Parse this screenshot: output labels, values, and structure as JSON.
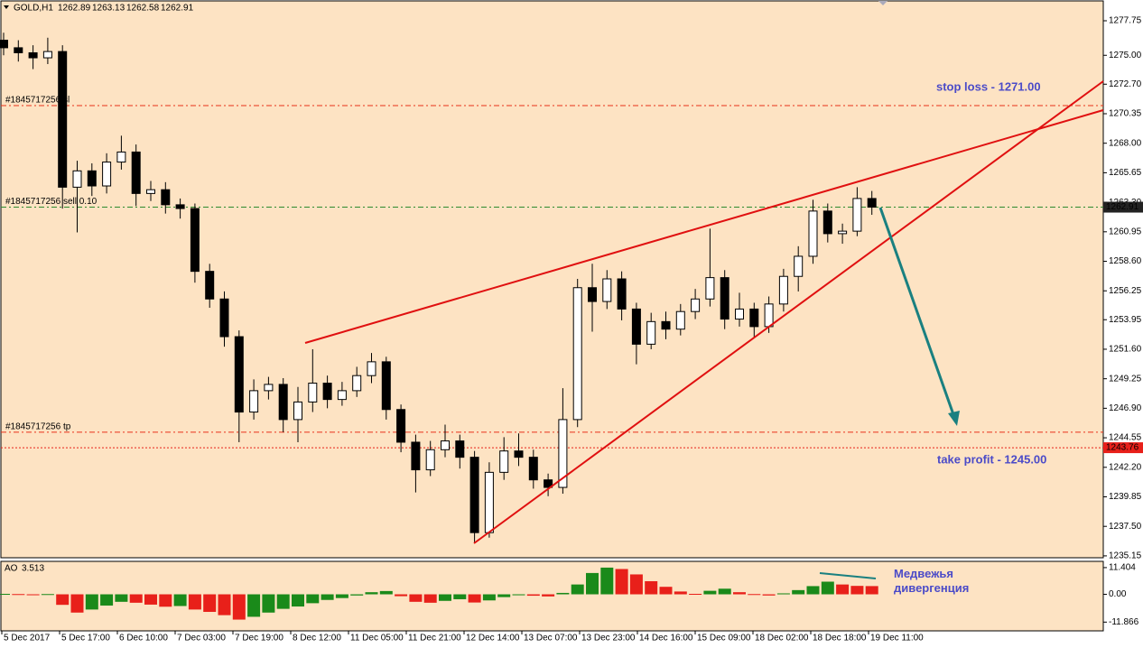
{
  "header": {
    "symbol": "GOLD,H1",
    "ohlc": [
      1262.89,
      1263.13,
      1262.58,
      1262.91
    ]
  },
  "chart_data": [
    {
      "type": "candlestick",
      "x_labels": [
        "5 Dec 2017",
        "5 Dec 17:00",
        "6 Dec 10:00",
        "7 Dec 03:00",
        "7 Dec 19:00",
        "8 Dec 12:00",
        "11 Dec 05:00",
        "11 Dec 21:00",
        "12 Dec 14:00",
        "13 Dec 07:00",
        "13 Dec 23:00",
        "14 Dec 16:00",
        "15 Dec 09:00",
        "18 Dec 02:00",
        "18 Dec 18:00",
        "19 Dec 11:00"
      ],
      "open": [
        1276.2,
        1275.6,
        1275.2,
        1274.8,
        1275.3,
        1264.5,
        1265.8,
        1264.6,
        1266.5,
        1267.3,
        1264.0,
        1264.3,
        1263.1,
        1262.8,
        1257.8,
        1255.6,
        1252.6,
        1246.6,
        1248.3,
        1248.8,
        1246.0,
        1247.4,
        1248.9,
        1247.6,
        1248.3,
        1249.5,
        1250.6,
        1246.8,
        1244.2,
        1242.0,
        1243.6,
        1244.3,
        1243.0,
        1237.0,
        1241.8,
        1243.5,
        1243.0,
        1241.2,
        1240.6,
        1246.0,
        1256.5,
        1255.4,
        1257.2,
        1254.8,
        1252.0,
        1253.8,
        1253.2,
        1254.6,
        1255.6,
        1257.3,
        1254.0,
        1254.8,
        1253.4,
        1255.2,
        1257.4,
        1259.0,
        1262.6,
        1260.8,
        1261.0,
        1263.6
      ],
      "high": [
        1276.8,
        1276.2,
        1275.8,
        1276.4,
        1275.8,
        1266.6,
        1266.4,
        1267.2,
        1268.6,
        1267.9,
        1265.0,
        1264.9,
        1263.6,
        1263.2,
        1258.4,
        1256.2,
        1253.1,
        1249.2,
        1249.4,
        1249.3,
        1248.6,
        1251.6,
        1249.5,
        1249.0,
        1250.2,
        1251.3,
        1251.0,
        1247.2,
        1244.8,
        1244.3,
        1245.6,
        1244.8,
        1243.5,
        1242.6,
        1244.6,
        1244.9,
        1243.6,
        1241.7,
        1248.5,
        1257.2,
        1258.4,
        1257.9,
        1257.8,
        1255.3,
        1254.5,
        1254.6,
        1255.2,
        1256.4,
        1261.2,
        1257.9,
        1256.1,
        1255.3,
        1255.8,
        1258.0,
        1259.8,
        1263.5,
        1263.2,
        1261.6,
        1264.5,
        1264.2
      ],
      "low": [
        1275.0,
        1274.5,
        1273.9,
        1274.3,
        1262.8,
        1260.9,
        1263.8,
        1264.0,
        1265.9,
        1263.0,
        1263.4,
        1262.4,
        1262.0,
        1256.9,
        1254.9,
        1251.8,
        1244.2,
        1246.0,
        1247.6,
        1245.0,
        1244.2,
        1246.6,
        1246.9,
        1247.1,
        1247.8,
        1248.9,
        1246.0,
        1243.4,
        1240.2,
        1241.5,
        1243.0,
        1242.1,
        1236.2,
        1236.6,
        1241.2,
        1242.3,
        1240.5,
        1239.9,
        1240.1,
        1245.4,
        1253.0,
        1254.8,
        1253.9,
        1250.4,
        1251.6,
        1252.4,
        1252.7,
        1254.0,
        1255.0,
        1253.2,
        1253.4,
        1252.5,
        1252.9,
        1254.6,
        1256.2,
        1258.4,
        1260.1,
        1260.0,
        1260.6,
        1262.3
      ],
      "close": [
        1275.6,
        1275.2,
        1274.8,
        1275.3,
        1264.5,
        1265.8,
        1264.6,
        1266.5,
        1267.3,
        1264.0,
        1264.3,
        1263.1,
        1262.8,
        1257.8,
        1255.6,
        1252.6,
        1246.6,
        1248.3,
        1248.8,
        1246.0,
        1247.4,
        1248.9,
        1247.6,
        1248.3,
        1249.5,
        1250.6,
        1246.8,
        1244.2,
        1242.0,
        1243.6,
        1244.3,
        1243.0,
        1237.0,
        1241.8,
        1243.5,
        1243.0,
        1241.2,
        1240.6,
        1246.0,
        1256.5,
        1255.4,
        1257.2,
        1254.8,
        1252.0,
        1253.8,
        1253.2,
        1254.6,
        1255.6,
        1257.3,
        1254.0,
        1254.8,
        1253.4,
        1255.2,
        1257.4,
        1259.0,
        1262.6,
        1260.8,
        1261.0,
        1263.6,
        1262.91
      ],
      "ylim": [
        1235.0,
        1279.33
      ],
      "yticks": [
        1277.75,
        {
          "value": 1275.0,
          "label": "1275.00"
        },
        {
          "value": 1272.7,
          "label": "1272.70"
        },
        1270.35,
        {
          "value": 1268.0,
          "label": "1268.00"
        },
        1265.65,
        {
          "value": 1263.3,
          "label": "1263.30"
        },
        1260.95,
        {
          "value": 1258.6,
          "label": "1258.60"
        },
        1256.25,
        1253.95,
        {
          "value": 1251.6,
          "label": "1251.60"
        },
        1249.25,
        {
          "value": 1246.9,
          "label": "1246.90"
        },
        1244.55,
        {
          "value": 1242.2,
          "label": "1242.20"
        },
        1239.85,
        {
          "value": 1237.5,
          "label": "1237.50"
        },
        1235.15
      ],
      "levels": [
        {
          "label": "#1845717256 sl",
          "value": 1271.0,
          "color": "#e8311a"
        },
        {
          "label": "#1845717256 sell 0.10",
          "value": 1262.91,
          "color": "#2e8b2e"
        },
        {
          "label": "#1845717256 tp",
          "value": 1245.0,
          "color": "#e8311a"
        }
      ],
      "bid_line": {
        "value": 1243.76,
        "color": "#e8201a"
      },
      "annotations": [
        "stop loss - 1271.00",
        "take profit - 1245.00"
      ]
    },
    {
      "type": "bar",
      "title": "AO",
      "current": 3.513,
      "values": [
        0.2,
        0.1,
        -0.3,
        0.1,
        -4.5,
        -7.8,
        -6.5,
        -4.8,
        -3.2,
        -3.6,
        -4.4,
        -5.3,
        -5.0,
        -6.5,
        -7.5,
        -8.9,
        -10.8,
        -9.6,
        -7.8,
        -6.2,
        -5.2,
        -3.8,
        -2.4,
        -1.6,
        -0.5,
        0.9,
        1.4,
        -0.8,
        -3.2,
        -3.6,
        -2.8,
        -2.1,
        -3.5,
        -2.6,
        -1.2,
        -0.4,
        -0.6,
        -0.9,
        0.6,
        4.2,
        9.1,
        11.4,
        10.8,
        8.5,
        5.6,
        3.2,
        1.2,
        0.2,
        1.5,
        2.4,
        0.9,
        0.1,
        -0.5,
        0.4,
        1.8,
        3.5,
        5.4,
        4.2,
        3.6,
        3.513
      ],
      "up_color": "#1a8a1a",
      "down_color": "#e8201a",
      "ylim": [
        -15.6,
        14.07
      ],
      "yticks": [
        11.404,
        {
          "value": 0,
          "label": "0.00"
        },
        -11.866
      ],
      "annotation": "Медвежья дивергенция"
    }
  ]
}
